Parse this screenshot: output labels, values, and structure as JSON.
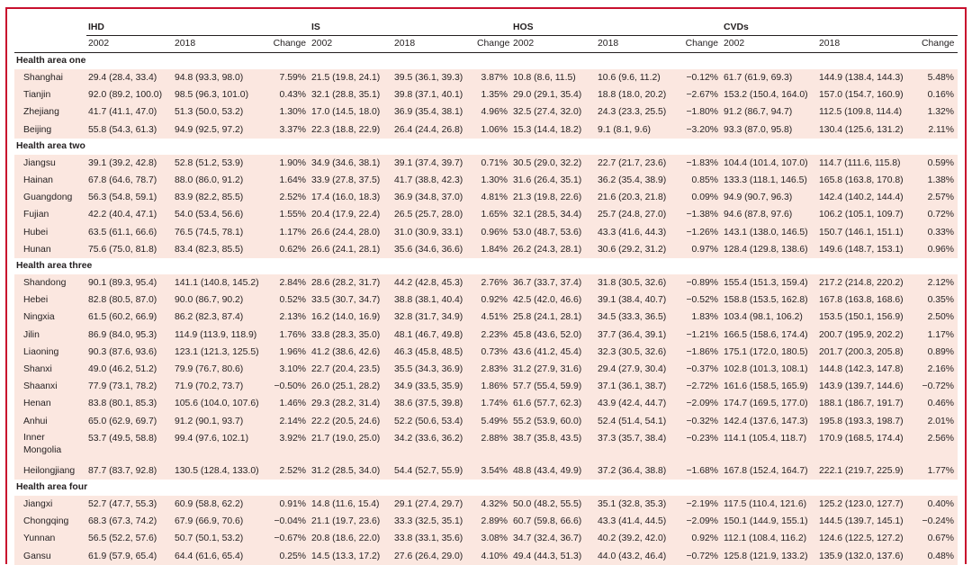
{
  "groups": [
    "IHD",
    "IS",
    "HOS",
    "CVDs"
  ],
  "subheaders": {
    "y1": "2002",
    "y2": "2018",
    "change": "Change"
  },
  "sections": [
    {
      "title": "Health area one",
      "rows": [
        [
          "Shanghai",
          "29.4 (28.4, 33.4)",
          "94.8 (93.3, 98.0)",
          "7.59%",
          "21.5 (19.8, 24.1)",
          "39.5 (36.1, 39.3)",
          "3.87%",
          "10.8 (8.6, 11.5)",
          "10.6 (9.6, 11.2)",
          "−0.12%",
          "61.7 (61.9, 69.3)",
          "144.9 (138.4, 144.3)",
          "5.48%"
        ],
        [
          "Tianjin",
          "92.0 (89.2, 100.0)",
          "98.5 (96.3, 101.0)",
          "0.43%",
          "32.1 (28.8, 35.1)",
          "39.8 (37.1, 40.1)",
          "1.35%",
          "29.0 (29.1, 35.4)",
          "18.8 (18.0, 20.2)",
          "−2.67%",
          "153.2 (150.4, 164.0)",
          "157.0 (154.7, 160.9)",
          "0.16%"
        ],
        [
          "Zhejiang",
          "41.7 (41.1, 47.0)",
          "51.3 (50.0, 53.2)",
          "1.30%",
          "17.0 (14.5, 18.0)",
          "36.9 (35.4, 38.1)",
          "4.96%",
          "32.5 (27.4, 32.0)",
          "24.3 (23.3, 25.5)",
          "−1.80%",
          "91.2 (86.7, 94.7)",
          "112.5 (109.8, 114.4)",
          "1.32%"
        ],
        [
          "Beijing",
          "55.8 (54.3, 61.3)",
          "94.9 (92.5, 97.2)",
          "3.37%",
          "22.3 (18.8, 22.9)",
          "26.4 (24.4, 26.8)",
          "1.06%",
          "15.3 (14.4, 18.2)",
          "9.1 (8.1, 9.6)",
          "−3.20%",
          "93.3 (87.0, 95.8)",
          "130.4 (125.6, 131.2)",
          "2.11%"
        ]
      ]
    },
    {
      "title": "Health area two",
      "rows": [
        [
          "Jiangsu",
          "39.1 (39.2, 42.8)",
          "52.8 (51.2, 53.9)",
          "1.90%",
          "34.9 (34.6, 38.1)",
          "39.1 (37.4, 39.7)",
          "0.71%",
          "30.5 (29.0, 32.2)",
          "22.7 (21.7, 23.6)",
          "−1.83%",
          "104.4 (101.4, 107.0)",
          "114.7 (111.6, 115.8)",
          "0.59%"
        ],
        [
          "Hainan",
          "67.8 (64.6, 78.7)",
          "88.0 (86.0, 91.2)",
          "1.64%",
          "33.9 (27.8, 37.5)",
          "41.7 (38.8, 42.3)",
          "1.30%",
          "31.6 (26.4, 35.1)",
          "36.2 (35.4, 38.9)",
          "0.85%",
          "133.3 (118.1, 146.5)",
          "165.8 (163.8, 170.8)",
          "1.38%"
        ],
        [
          "Guangdong",
          "56.3 (54.8, 59.1)",
          "83.9 (82.2, 85.5)",
          "2.52%",
          "17.4 (16.0, 18.3)",
          "36.9 (34.8, 37.0)",
          "4.81%",
          "21.3 (19.8, 22.6)",
          "21.6 (20.3, 21.8)",
          "0.09%",
          "94.9 (90.7, 96.3)",
          "142.4 (140.2, 144.4)",
          "2.57%"
        ],
        [
          "Fujian",
          "42.2 (40.4, 47.1)",
          "54.0 (53.4, 56.6)",
          "1.55%",
          "20.4 (17.9, 22.4)",
          "26.5 (25.7, 28.0)",
          "1.65%",
          "32.1 (28.5, 34.4)",
          "25.7 (24.8, 27.0)",
          "−1.38%",
          "94.6 (87.8, 97.6)",
          "106.2 (105.1, 109.7)",
          "0.72%"
        ],
        [
          "Hubei",
          "63.5 (61.1, 66.6)",
          "76.5 (74.5, 78.1)",
          "1.17%",
          "26.6 (24.4, 28.0)",
          "31.0 (30.9, 33.1)",
          "0.96%",
          "53.0 (48.7, 53.6)",
          "43.3 (41.6, 44.3)",
          "−1.26%",
          "143.1 (138.0, 146.5)",
          "150.7 (146.1, 151.1)",
          "0.33%"
        ],
        [
          "Hunan",
          "75.6 (75.0, 81.8)",
          "83.4 (82.3, 85.5)",
          "0.62%",
          "26.6 (24.1, 28.1)",
          "35.6 (34.6, 36.6)",
          "1.84%",
          "26.2 (24.3, 28.1)",
          "30.6 (29.2, 31.2)",
          "0.97%",
          "128.4 (129.8, 138.6)",
          "149.6 (148.7, 153.1)",
          "0.96%"
        ]
      ]
    },
    {
      "title": "Health area three",
      "rows": [
        [
          "Shandong",
          "90.1 (89.3, 95.4)",
          "141.1 (140.8, 145.2)",
          "2.84%",
          "28.6 (28.2, 31.7)",
          "44.2 (42.8, 45.3)",
          "2.76%",
          "36.7 (33.7, 37.4)",
          "31.8 (30.5, 32.6)",
          "−0.89%",
          "155.4 (151.3, 159.4)",
          "217.2 (214.8, 220.2)",
          "2.12%"
        ],
        [
          "Hebei",
          "82.8 (80.5, 87.0)",
          "90.0 (86.7, 90.2)",
          "0.52%",
          "33.5 (30.7, 34.7)",
          "38.8 (38.1, 40.4)",
          "0.92%",
          "42.5 (42.0, 46.6)",
          "39.1 (38.4, 40.7)",
          "−0.52%",
          "158.8 (153.5, 162.8)",
          "167.8 (163.8, 168.6)",
          "0.35%"
        ],
        [
          "Ningxia",
          "61.5 (60.2, 66.9)",
          "86.2 (82.3, 87.4)",
          "2.13%",
          "16.2 (14.0, 16.9)",
          "32.8 (31.7, 34.9)",
          "4.51%",
          "25.8 (24.1, 28.1)",
          "34.5 (33.3, 36.5)",
          "1.83%",
          "103.4 (98.1, 106.2)",
          "153.5 (150.1, 156.9)",
          "2.50%"
        ],
        [
          "Jilin",
          "86.9 (84.0, 95.3)",
          "114.9 (113.9, 118.9)",
          "1.76%",
          "33.8 (28.3, 35.0)",
          "48.1 (46.7, 49.8)",
          "2.23%",
          "45.8 (43.6, 52.0)",
          "37.7 (36.4, 39.1)",
          "−1.21%",
          "166.5 (158.6, 174.4)",
          "200.7 (195.9, 202.2)",
          "1.17%"
        ],
        [
          "Liaoning",
          "90.3 (87.6, 93.6)",
          "123.1 (121.3, 125.5)",
          "1.96%",
          "41.2 (38.6, 42.6)",
          "46.3 (45.8, 48.5)",
          "0.73%",
          "43.6 (41.2, 45.4)",
          "32.3 (30.5, 32.6)",
          "−1.86%",
          "175.1 (172.0, 180.5)",
          "201.7 (200.3, 205.8)",
          "0.89%"
        ],
        [
          "Shanxi",
          "49.0 (46.2, 51.2)",
          "79.9 (76.7, 80.6)",
          "3.10%",
          "22.7 (20.4, 23.5)",
          "35.5 (34.3, 36.9)",
          "2.83%",
          "31.2 (27.9, 31.6)",
          "29.4 (27.9, 30.4)",
          "−0.37%",
          "102.8 (101.3, 108.1)",
          "144.8 (142.3, 147.8)",
          "2.16%"
        ],
        [
          "Shaanxi",
          "77.9 (73.1, 78.2)",
          "71.9 (70.2, 73.7)",
          "−0.50%",
          "26.0 (25.1, 28.2)",
          "34.9 (33.5, 35.9)",
          "1.86%",
          "57.7 (55.4, 59.9)",
          "37.1 (36.1, 38.7)",
          "−2.72%",
          "161.6 (158.5, 165.9)",
          "143.9 (139.7, 144.6)",
          "−0.72%"
        ],
        [
          "Henan",
          "83.8 (80.1, 85.3)",
          "105.6 (104.0, 107.6)",
          "1.46%",
          "29.3 (28.2, 31.4)",
          "38.6 (37.5, 39.8)",
          "1.74%",
          "61.6 (57.7, 62.3)",
          "43.9 (42.4, 44.7)",
          "−2.09%",
          "174.7 (169.5, 177.0)",
          "188.1 (186.7, 191.7)",
          "0.46%"
        ],
        [
          "Anhui",
          "65.0 (62.9, 69.7)",
          "91.2 (90.1, 93.7)",
          "2.14%",
          "22.2 (20.5, 24.6)",
          "52.2 (50.6, 53.4)",
          "5.49%",
          "55.2 (53.9, 60.0)",
          "52.4 (51.4, 54.1)",
          "−0.32%",
          "142.4 (137.6, 147.3)",
          "195.8 (193.3, 198.7)",
          "2.01%"
        ],
        [
          "Inner Mongolia",
          "53.7 (49.5, 58.8)",
          "99.4 (97.6, 102.1)",
          "3.92%",
          "21.7 (19.0, 25.0)",
          "34.2 (33.6, 36.2)",
          "2.88%",
          "38.7 (35.8, 43.5)",
          "37.3 (35.7, 38.4)",
          "−0.23%",
          "114.1 (105.4, 118.7)",
          "170.9 (168.5, 174.4)",
          "2.56%"
        ],
        [
          "Heilongjiang",
          "87.7 (83.7, 92.8)",
          "130.5 (128.4, 133.0)",
          "2.52%",
          "31.2 (28.5, 34.0)",
          "54.4 (52.7, 55.9)",
          "3.54%",
          "48.8 (43.4, 49.9)",
          "37.2 (36.4, 38.8)",
          "−1.68%",
          "167.8 (152.4, 164.7)",
          "222.1 (219.7, 225.9)",
          "1.77%"
        ]
      ]
    },
    {
      "title": "Health area four",
      "rows": [
        [
          "Jiangxi",
          "52.7 (47.7, 55.3)",
          "60.9 (58.8, 62.2)",
          "0.91%",
          "14.8 (11.6, 15.4)",
          "29.1 (27.4, 29.7)",
          "4.32%",
          "50.0 (48.2, 55.5)",
          "35.1 (32.8, 35.3)",
          "−2.19%",
          "117.5 (110.4, 121.6)",
          "125.2 (123.0, 127.7)",
          "0.40%"
        ],
        [
          "Chongqing",
          "68.3 (67.3, 74.2)",
          "67.9 (66.9, 70.6)",
          "−0.04%",
          "21.1 (19.7, 23.6)",
          "33.3 (32.5, 35.1)",
          "2.89%",
          "60.7 (59.8, 66.6)",
          "43.3 (41.4, 44.5)",
          "−2.09%",
          "150.1 (144.9, 155.1)",
          "144.5 (139.7, 145.1)",
          "−0.24%"
        ],
        [
          "Yunnan",
          "56.5 (52.2, 57.6)",
          "50.7 (50.1, 53.2)",
          "−0.67%",
          "20.8 (18.6, 22.0)",
          "33.8 (33.1, 35.6)",
          "3.08%",
          "34.7 (32.4, 36.7)",
          "40.2 (39.2, 42.0)",
          "0.92%",
          "112.1 (108.4, 116.2)",
          "124.6 (122.5, 127.2)",
          "0.67%"
        ],
        [
          "Gansu",
          "61.9 (57.9, 65.4)",
          "64.4 (61.6, 65.4)",
          "0.25%",
          "14.5 (13.3, 17.2)",
          "27.6 (26.4, 29.0)",
          "4.10%",
          "49.4 (44.3, 51.3)",
          "44.0 (43.2, 46.4)",
          "−0.72%",
          "125.8 (121.9, 133.2)",
          "135.9 (132.0, 137.6)",
          "0.48%"
        ]
      ]
    }
  ]
}
